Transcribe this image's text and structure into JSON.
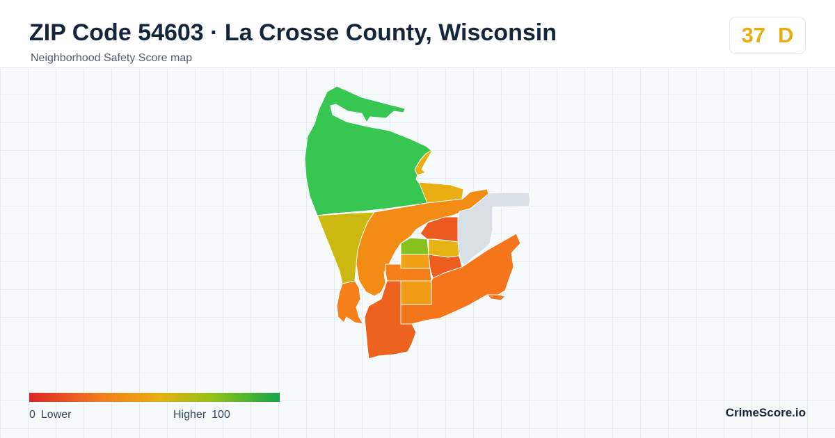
{
  "header": {
    "title": "ZIP Code 54603 · La Crosse County, Wisconsin",
    "subtitle": "Neighborhood Safety Score map"
  },
  "score": {
    "value": "37",
    "grade": "D",
    "color": "#e8ad10"
  },
  "legend": {
    "min_value": "0",
    "min_label": "Lower",
    "max_label": "Higher",
    "max_value": "100",
    "colors": [
      "#dc2626",
      "#f47a1f",
      "#e8b010",
      "#8ec21a",
      "#16a34a"
    ]
  },
  "brand": "CrimeScore.io",
  "map_regions": [
    {
      "id": "north-island",
      "color": "#38c653"
    },
    {
      "id": "northeast-sliver",
      "color": "#e9ae12"
    },
    {
      "id": "east-central",
      "color": "#e9ae12"
    },
    {
      "id": "west-yellow",
      "color": "#cbb911"
    },
    {
      "id": "central-orange",
      "color": "#f28c14"
    },
    {
      "id": "airport-no-data",
      "color": "#d8dfe5"
    },
    {
      "id": "small-red-block",
      "color": "#ec5a20"
    },
    {
      "id": "green-block",
      "color": "#86c31c"
    },
    {
      "id": "small-yellow-block",
      "color": "#e7b313"
    },
    {
      "id": "light-orange-block",
      "color": "#f2a016"
    },
    {
      "id": "red-block-east",
      "color": "#ee5d20"
    },
    {
      "id": "orange-west-block",
      "color": "#f5801a"
    },
    {
      "id": "orange-mid-block",
      "color": "#f29c16"
    },
    {
      "id": "southeast-region",
      "color": "#f5761a"
    },
    {
      "id": "south-region",
      "color": "#ed621f"
    },
    {
      "id": "southwest-peninsula",
      "color": "#f5801a"
    },
    {
      "id": "southeast-tip",
      "color": "#f5761a"
    }
  ]
}
